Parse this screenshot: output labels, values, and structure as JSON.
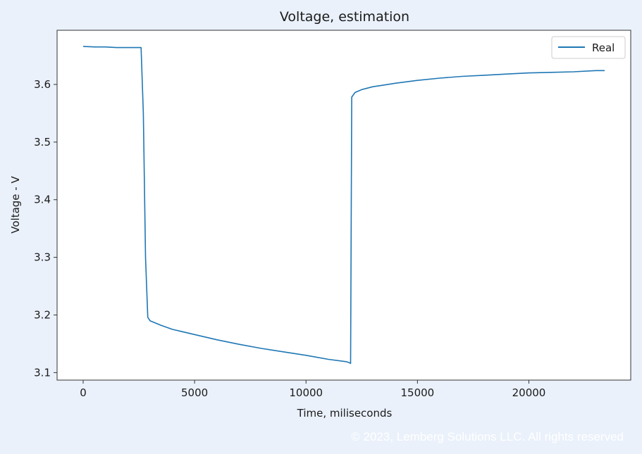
{
  "chart_data": {
    "type": "line",
    "title": "Voltage, estimation",
    "xlabel": "Time, miliseconds",
    "ylabel": "Voltage - V",
    "xlim": [
      -1170,
      24570
    ],
    "ylim": [
      3.087,
      3.694
    ],
    "xticks": [
      0,
      5000,
      10000,
      15000,
      20000
    ],
    "xtick_labels": [
      "0",
      "5000",
      "10000",
      "15000",
      "20000"
    ],
    "yticks": [
      3.1,
      3.2,
      3.3,
      3.4,
      3.5,
      3.6
    ],
    "ytick_labels": [
      "3.1",
      "3.2",
      "3.3",
      "3.4",
      "3.5",
      "3.6"
    ],
    "grid": false,
    "legend_position": "top-right",
    "series": [
      {
        "name": "Real",
        "color": "#1f77b4",
        "x": [
          0,
          500,
          1000,
          1500,
          2000,
          2500,
          2600,
          2700,
          2800,
          2900,
          3000,
          3500,
          4000,
          5000,
          6000,
          7000,
          8000,
          9000,
          10000,
          11000,
          11800,
          11950,
          12000,
          12050,
          12200,
          12500,
          13000,
          13500,
          14000,
          15000,
          16000,
          17000,
          18000,
          19000,
          20000,
          21000,
          22000,
          23000,
          23400
        ],
        "y": [
          3.666,
          3.665,
          3.665,
          3.664,
          3.664,
          3.664,
          3.664,
          3.55,
          3.3,
          3.196,
          3.19,
          3.182,
          3.175,
          3.166,
          3.157,
          3.149,
          3.142,
          3.136,
          3.13,
          3.123,
          3.119,
          3.117,
          3.116,
          3.578,
          3.586,
          3.591,
          3.596,
          3.599,
          3.602,
          3.607,
          3.611,
          3.614,
          3.616,
          3.618,
          3.62,
          3.621,
          3.622,
          3.624,
          3.624
        ]
      }
    ]
  },
  "footer": {
    "copyright": "© 2023, Lemberg Solutions LLC. All rights reserved"
  }
}
